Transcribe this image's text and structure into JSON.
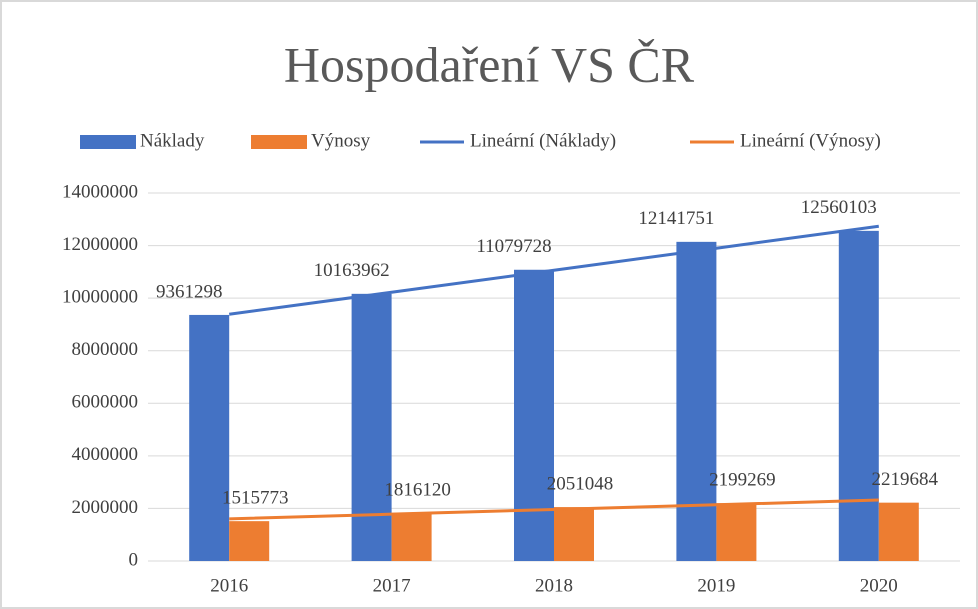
{
  "chart_data": {
    "type": "bar",
    "title": "Hospodaření VS ČR",
    "categories": [
      "2016",
      "2017",
      "2018",
      "2019",
      "2020"
    ],
    "series": [
      {
        "name": "Náklady",
        "type": "bar",
        "color": "#4472c4",
        "values": [
          9361298,
          10163962,
          11079728,
          12141751,
          12560103
        ]
      },
      {
        "name": "Výnosy",
        "type": "bar",
        "color": "#ed7d31",
        "values": [
          1515773,
          1816120,
          2051048,
          2199269,
          2219684
        ]
      },
      {
        "name": "Lineární (Náklady)",
        "type": "line",
        "color": "#4472c4",
        "values": [
          9386288,
          10223828,
          11061368,
          11898908,
          12736448
        ]
      },
      {
        "name": "Lineární (Výnosy)",
        "type": "line",
        "color": "#ed7d31",
        "values": [
          1602185,
          1781282,
          1960379,
          2139476,
          2318573
        ]
      }
    ],
    "ylim": [
      0,
      14000000
    ],
    "yticks": [
      0,
      2000000,
      4000000,
      6000000,
      8000000,
      10000000,
      12000000,
      14000000
    ],
    "grid": true,
    "legend": "top"
  }
}
